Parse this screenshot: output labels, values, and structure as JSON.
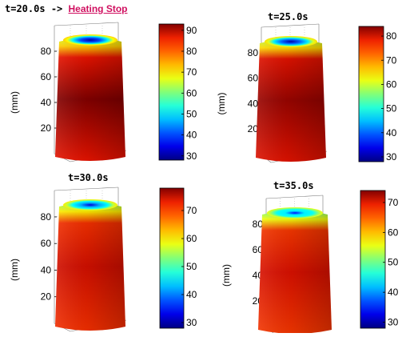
{
  "chart_data": [
    {
      "type": "surface",
      "title": "t=20.0s",
      "title_arrow": "->",
      "title_link": "Heating Stop",
      "ylabel": "(mm)",
      "yticks": [
        20,
        40,
        60,
        80
      ],
      "ylim": [
        0,
        95
      ],
      "colorbar": {
        "ticks": [
          30,
          40,
          50,
          60,
          70,
          80,
          90
        ],
        "range": [
          28,
          93
        ]
      },
      "surface_temperature": {
        "body": 88,
        "hot_core": 93,
        "top_rim": 72,
        "top_cap": 30
      }
    },
    {
      "type": "surface",
      "title": "t=25.0s",
      "ylabel": "(mm)",
      "yticks": [
        20,
        40,
        60,
        80
      ],
      "ylim": [
        0,
        95
      ],
      "colorbar": {
        "ticks": [
          30,
          40,
          50,
          60,
          70,
          80
        ],
        "range": [
          28,
          84
        ]
      },
      "surface_temperature": {
        "body": 80,
        "hot_core": 83,
        "top_rim": 65,
        "top_cap": 30
      }
    },
    {
      "type": "surface",
      "title": "t=30.0s",
      "ylabel": "(mm)",
      "yticks": [
        20,
        40,
        60,
        80
      ],
      "ylim": [
        0,
        95
      ],
      "colorbar": {
        "ticks": [
          30,
          40,
          50,
          60,
          70
        ],
        "range": [
          28,
          78
        ]
      },
      "surface_temperature": {
        "body": 72,
        "hot_core": 75,
        "top_rim": 60,
        "top_cap": 32
      }
    },
    {
      "type": "surface",
      "title": "t=35.0s",
      "ylabel": "(mm)",
      "yticks": [
        20,
        40,
        60,
        80
      ],
      "ylim": [
        0,
        95
      ],
      "colorbar": {
        "ticks": [
          30,
          40,
          50,
          60,
          70
        ],
        "range": [
          28,
          74
        ]
      },
      "surface_temperature": {
        "body": 68,
        "hot_core": 71,
        "top_rim": 56,
        "top_cap": 34
      }
    }
  ]
}
